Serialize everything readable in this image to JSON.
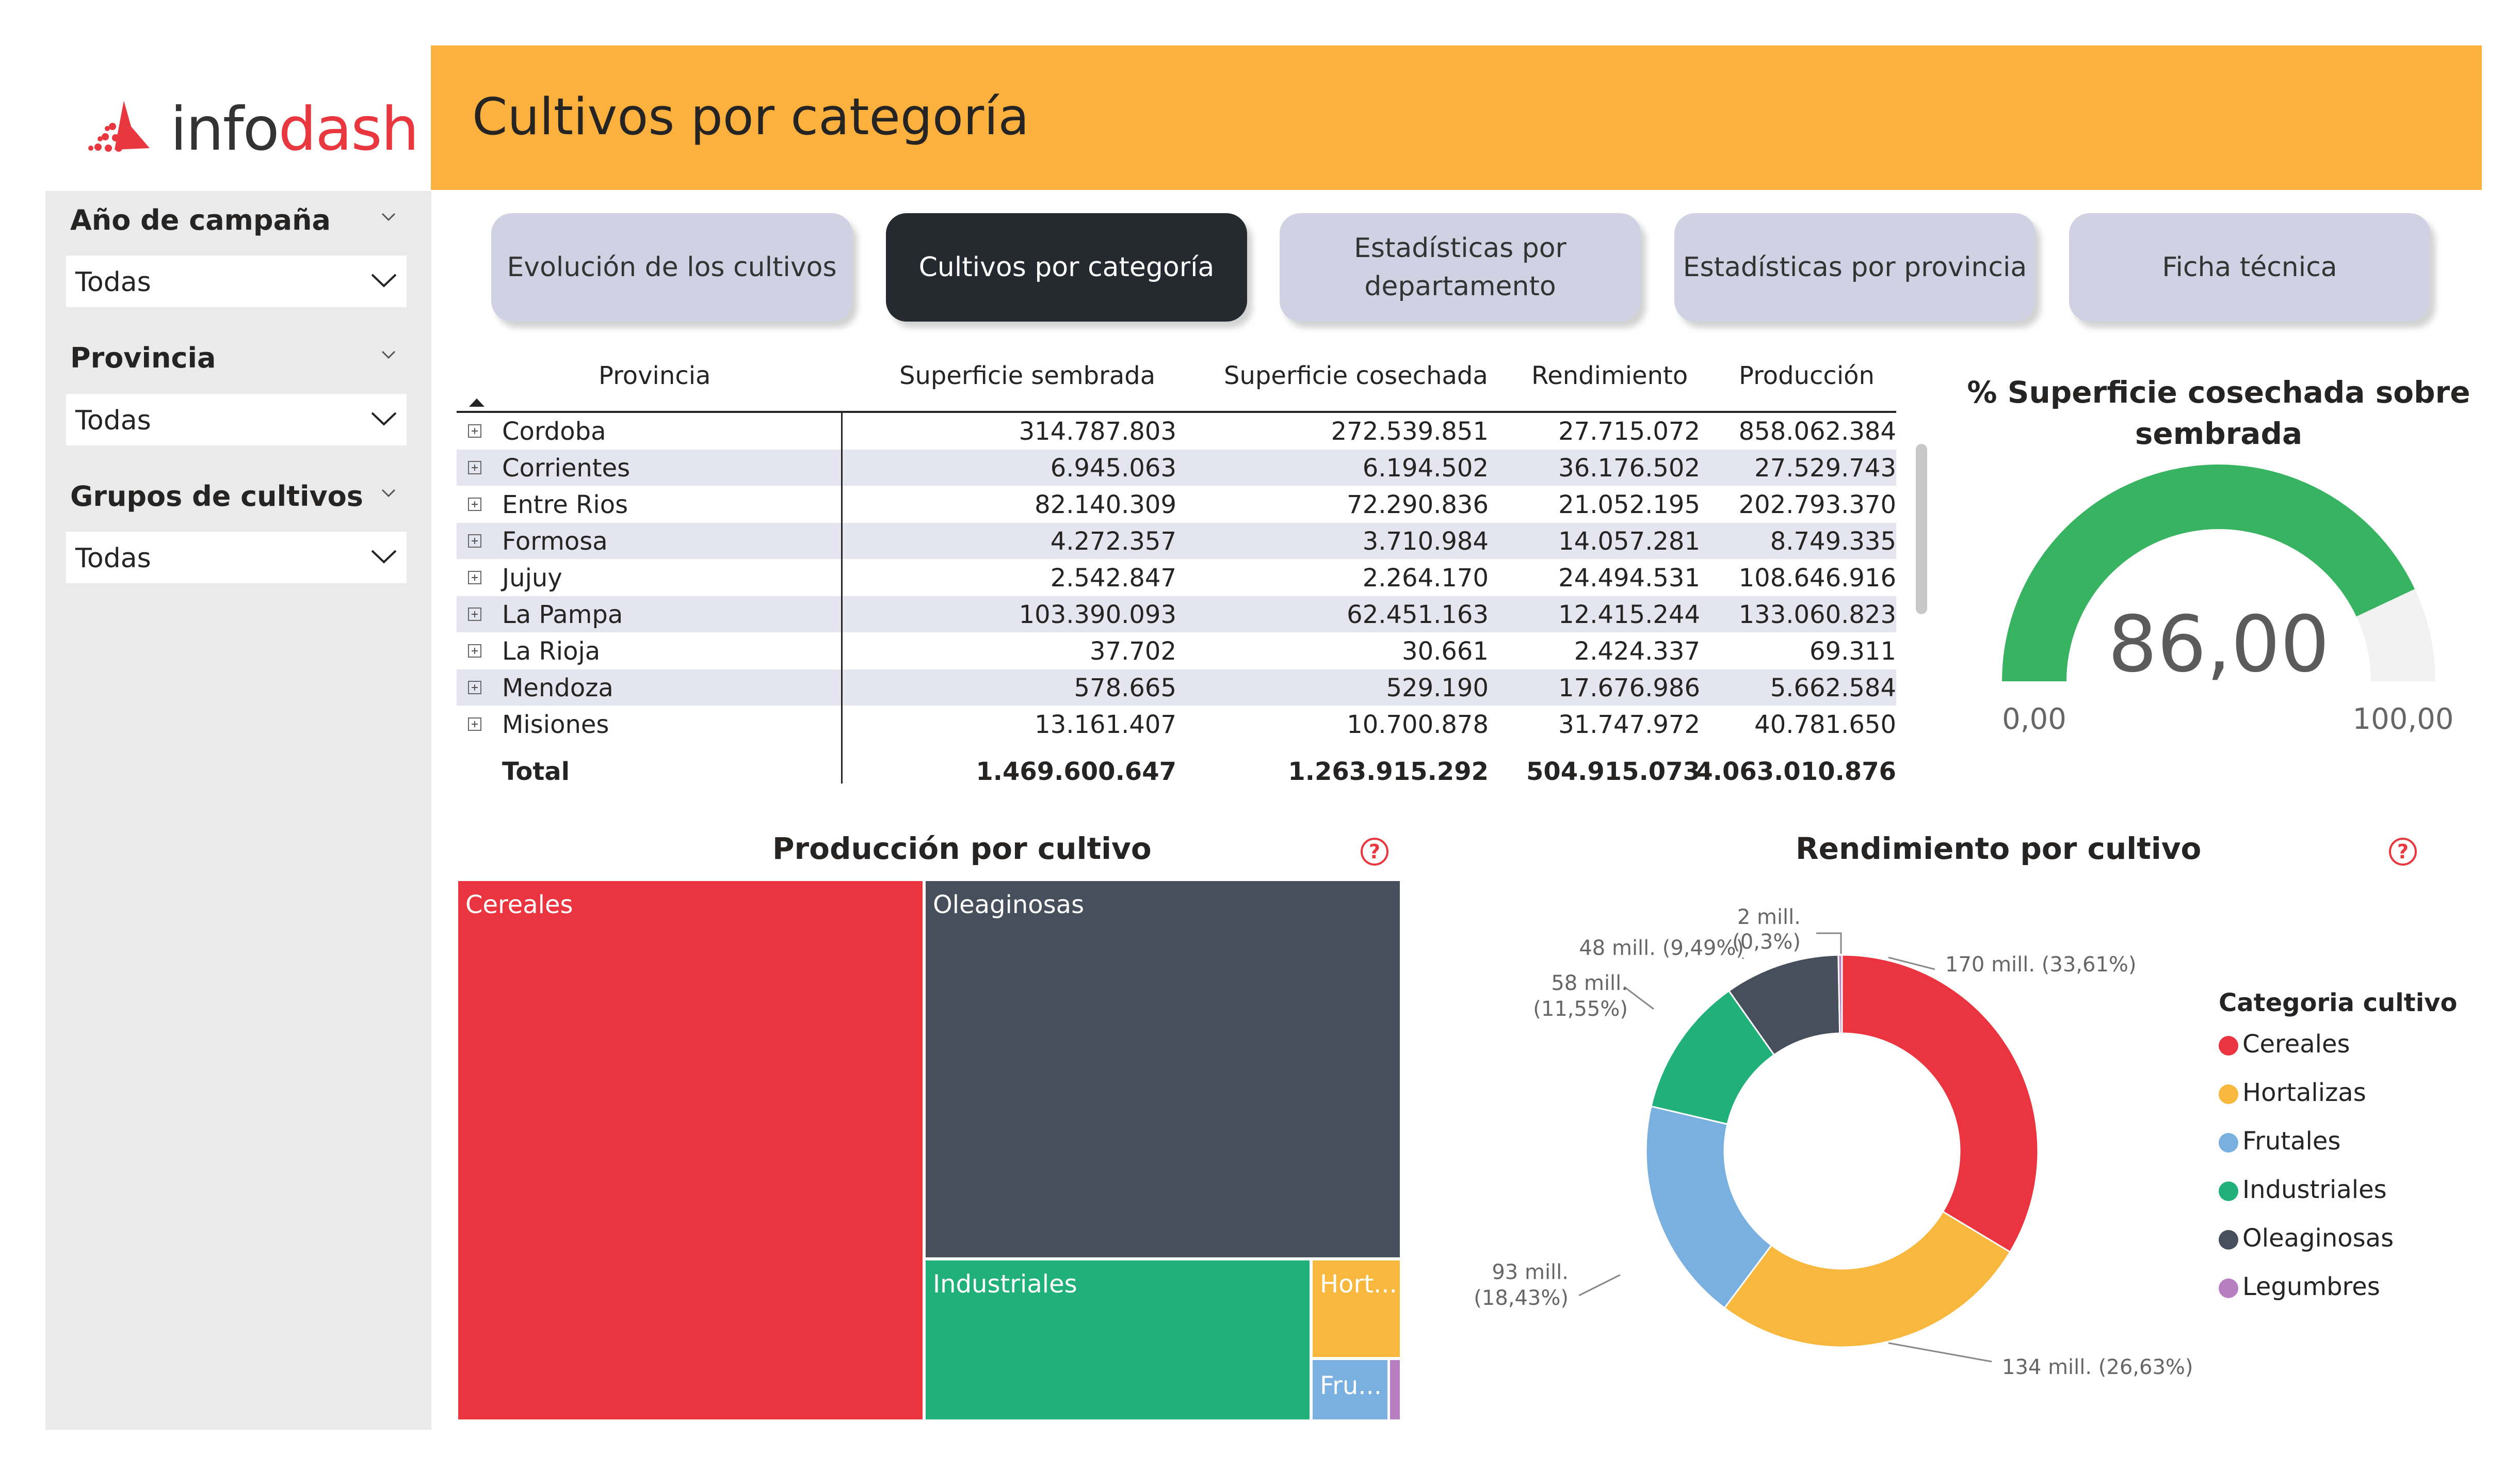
{
  "logo": {
    "text_a": "info",
    "text_b": "dash"
  },
  "header": {
    "title": "Cultivos por categoría"
  },
  "sidebar": {
    "slicers": [
      {
        "label": "Año de campaña",
        "value": "Todas"
      },
      {
        "label": "Provincia",
        "value": "Todas"
      },
      {
        "label": "Grupos de cultivos",
        "value": "Todas"
      }
    ]
  },
  "tabs": [
    {
      "label": "Evolución de los cultivos",
      "active": false
    },
    {
      "label": "Cultivos por categoría",
      "active": true
    },
    {
      "label": "Estadísticas por departamento",
      "active": false
    },
    {
      "label": "Estadísticas por provincia",
      "active": false
    },
    {
      "label": "Ficha técnica",
      "active": false
    }
  ],
  "table": {
    "columns": [
      "Provincia",
      "Superficie sembrada",
      "Superficie cosechada",
      "Rendimiento",
      "Producción"
    ],
    "rows": [
      [
        "Cordoba",
        "314.787.803",
        "272.539.851",
        "27.715.072",
        "858.062.384"
      ],
      [
        "Corrientes",
        "6.945.063",
        "6.194.502",
        "36.176.502",
        "27.529.743"
      ],
      [
        "Entre Rios",
        "82.140.309",
        "72.290.836",
        "21.052.195",
        "202.793.370"
      ],
      [
        "Formosa",
        "4.272.357",
        "3.710.984",
        "14.057.281",
        "8.749.335"
      ],
      [
        "Jujuy",
        "2.542.847",
        "2.264.170",
        "24.494.531",
        "108.646.916"
      ],
      [
        "La Pampa",
        "103.390.093",
        "62.451.163",
        "12.415.244",
        "133.060.823"
      ],
      [
        "La Rioja",
        "37.702",
        "30.661",
        "2.424.337",
        "69.311"
      ],
      [
        "Mendoza",
        "578.665",
        "529.190",
        "17.676.986",
        "5.662.584"
      ],
      [
        "Misiones",
        "13.161.407",
        "10.700.878",
        "31.747.972",
        "40.781.650"
      ]
    ],
    "total": [
      "Total",
      "1.469.600.647",
      "1.263.915.292",
      "504.915.073",
      "4.063.010.876"
    ]
  },
  "gauge": {
    "title": "% Superficie cosechada sobre sembrada",
    "value": 86.0,
    "value_label": "86,00",
    "min_label": "0,00",
    "max_label": "100,00",
    "fill_color": "#38b362",
    "track_color": "#f2f2f2"
  },
  "treemap": {
    "title": "Producción por cultivo",
    "help": "?",
    "items": [
      {
        "name": "Cereales",
        "label": "Cereales",
        "color": "#ea3540"
      },
      {
        "name": "Oleaginosas",
        "label": "Oleaginosas",
        "color": "#464f5b"
      },
      {
        "name": "Industriales",
        "label": "Industriales",
        "color": "#22b07a"
      },
      {
        "name": "Hortalizas",
        "label": "Hort...",
        "color": "#f8b83d"
      },
      {
        "name": "Frutales",
        "label": "Fru...",
        "color": "#7ab0df"
      },
      {
        "name": "Legumbres",
        "label": "",
        "color": "#b87fc0"
      }
    ]
  },
  "chart_data": {
    "type": "pie",
    "title": "Rendimiento por cultivo",
    "legend_title": "Categoria cultivo",
    "legend_position": "right",
    "slices": [
      {
        "name": "Cereales",
        "value": 170,
        "label": "170 mill. (33,61%)",
        "color": "#ea3540"
      },
      {
        "name": "Hortalizas",
        "value": 134,
        "label": "134 mill. (26,63%)",
        "color": "#f8b83d"
      },
      {
        "name": "Frutales",
        "value": 93,
        "label_a": "93 mill.",
        "label_b": "(18,43%)",
        "color": "#7ab0df"
      },
      {
        "name": "Industriales",
        "value": 58,
        "label_a": "58 mill.",
        "label_b": "(11,55%)",
        "color": "#22b07a"
      },
      {
        "name": "Oleaginosas",
        "value": 48,
        "label": "48 mill. (9,49%)",
        "color": "#464f5b"
      },
      {
        "name": "Legumbres",
        "value": 2,
        "label_a": "2 mill.",
        "label_b": "(0,3%)",
        "color": "#b87fc0"
      }
    ],
    "percentages": [
      33.61,
      26.63,
      18.43,
      11.55,
      9.49,
      0.3
    ]
  }
}
